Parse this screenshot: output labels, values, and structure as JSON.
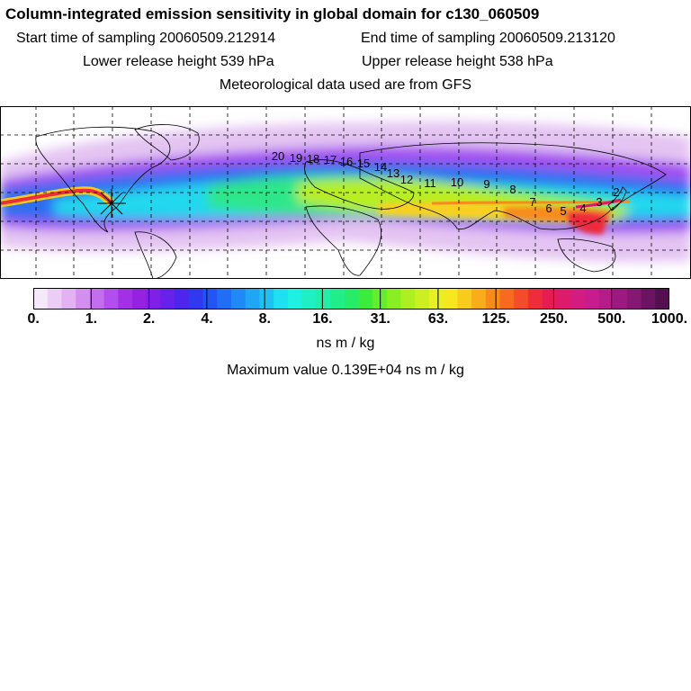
{
  "header": {
    "title": "Column-integrated emission sensitivity in global domain for c130_060509",
    "start_time": "Start time of sampling 20060509.212914",
    "end_time": "End time of sampling 20060509.213120",
    "lower_release": "Lower release height  539 hPa",
    "upper_release": "Upper release height  538 hPa",
    "meteo": "Meteorological data used are from GFS"
  },
  "map": {
    "type": "global emission sensitivity map",
    "projection": "equirectangular",
    "receptor_marker": "star",
    "trajectory_labels": [
      "20",
      "19",
      "18",
      "17",
      "16",
      "15",
      "14",
      "13",
      "12",
      "11",
      "10",
      "9",
      "8",
      "7",
      "6",
      "5",
      "4",
      "3",
      "2"
    ]
  },
  "colorbar": {
    "tick_labels": [
      "0.",
      "1.",
      "2.",
      "4.",
      "8.",
      "16.",
      "31.",
      "63.",
      "125.",
      "250.",
      "500.",
      "1000."
    ],
    "colors": [
      "#f6e8fb",
      "#eccdf6",
      "#e2b2f3",
      "#d28ff0",
      "#c36eef",
      "#b14eed",
      "#a231e6",
      "#9422e0",
      "#7e20e8",
      "#6622ea",
      "#4c26ec",
      "#3038f0",
      "#2255f4",
      "#1f6ff6",
      "#1f8af6",
      "#1fa6f4",
      "#1ec2f2",
      "#1ee0f0",
      "#1ef0e2",
      "#1ef0c4",
      "#1ef0a8",
      "#20ee8a",
      "#26ec6a",
      "#3cec3c",
      "#62ee28",
      "#88f022",
      "#acf022",
      "#caf022",
      "#e6f022",
      "#f6e81e",
      "#f8cc1c",
      "#f8ae1a",
      "#f88c1a",
      "#f86a1e",
      "#f44c28",
      "#ee2c3a",
      "#e61c52",
      "#de1a6a",
      "#d41c80",
      "#c81c8e",
      "#b41c8a",
      "#9c1a80",
      "#841872",
      "#6a1462",
      "#521050"
    ],
    "units": "ns m / kg",
    "max_value": "Maximum value  0.139E+04 ns m / kg"
  }
}
